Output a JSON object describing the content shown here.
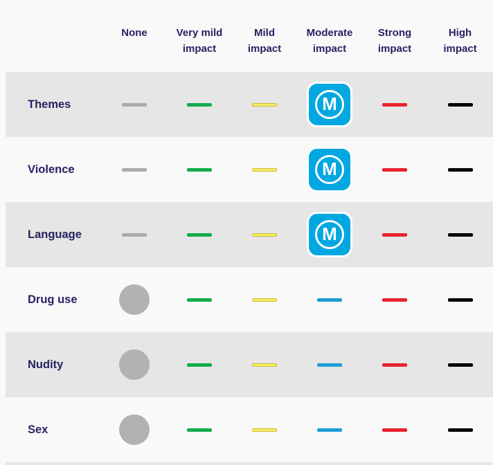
{
  "page": {
    "background_color": "#f9f9f9",
    "stripe_color": "#e6e6e6",
    "heading_text_color": "#262262"
  },
  "table": {
    "column_headers": [
      {
        "id": "none",
        "label": "None",
        "lines": [
          "None"
        ]
      },
      {
        "id": "very-mild",
        "label": "Very mild impact",
        "lines": [
          "Very mild",
          "impact"
        ]
      },
      {
        "id": "mild",
        "label": "Mild impact",
        "lines": [
          "Mild",
          "impact"
        ]
      },
      {
        "id": "moderate",
        "label": "Moderate impact",
        "lines": [
          "Moderate",
          "impact"
        ]
      },
      {
        "id": "strong",
        "label": "Strong impact",
        "lines": [
          "Strong",
          "impact"
        ]
      },
      {
        "id": "high",
        "label": "High impact",
        "lines": [
          "High",
          "impact"
        ]
      }
    ],
    "markers": {
      "gray-dash": {
        "type": "dash",
        "color": "#ababab"
      },
      "green-dash": {
        "type": "dash",
        "color": "#13ab4c"
      },
      "yellow-dash": {
        "type": "dash",
        "color": "#f6ec60",
        "border_color": "#c9bd3a"
      },
      "blue-dash": {
        "type": "dash",
        "color": "#1f9cd8"
      },
      "red-dash": {
        "type": "dash",
        "color": "#e8222d"
      },
      "black-dash": {
        "type": "dash",
        "color": "#000000"
      },
      "gray-circle": {
        "type": "circle",
        "color": "#b2b2b2"
      },
      "m-badge": {
        "type": "badge",
        "letter": "M",
        "background": "#00a7e1",
        "foreground": "#ffffff"
      }
    },
    "rows": [
      {
        "id": "themes",
        "label": "Themes",
        "striped": true,
        "cells": [
          "gray-dash",
          "green-dash",
          "yellow-dash",
          "m-badge",
          "red-dash",
          "black-dash"
        ]
      },
      {
        "id": "violence",
        "label": "Violence",
        "striped": false,
        "cells": [
          "gray-dash",
          "green-dash",
          "yellow-dash",
          "m-badge",
          "red-dash",
          "black-dash"
        ]
      },
      {
        "id": "language",
        "label": "Language",
        "striped": true,
        "cells": [
          "gray-dash",
          "green-dash",
          "yellow-dash",
          "m-badge",
          "red-dash",
          "black-dash"
        ]
      },
      {
        "id": "drug-use",
        "label": "Drug use",
        "striped": false,
        "cells": [
          "gray-circle",
          "green-dash",
          "yellow-dash",
          "blue-dash",
          "red-dash",
          "black-dash"
        ]
      },
      {
        "id": "nudity",
        "label": "Nudity",
        "striped": true,
        "cells": [
          "gray-circle",
          "green-dash",
          "yellow-dash",
          "blue-dash",
          "red-dash",
          "black-dash"
        ]
      },
      {
        "id": "sex",
        "label": "Sex",
        "striped": false,
        "cells": [
          "gray-circle",
          "green-dash",
          "yellow-dash",
          "blue-dash",
          "red-dash",
          "black-dash"
        ]
      }
    ]
  }
}
